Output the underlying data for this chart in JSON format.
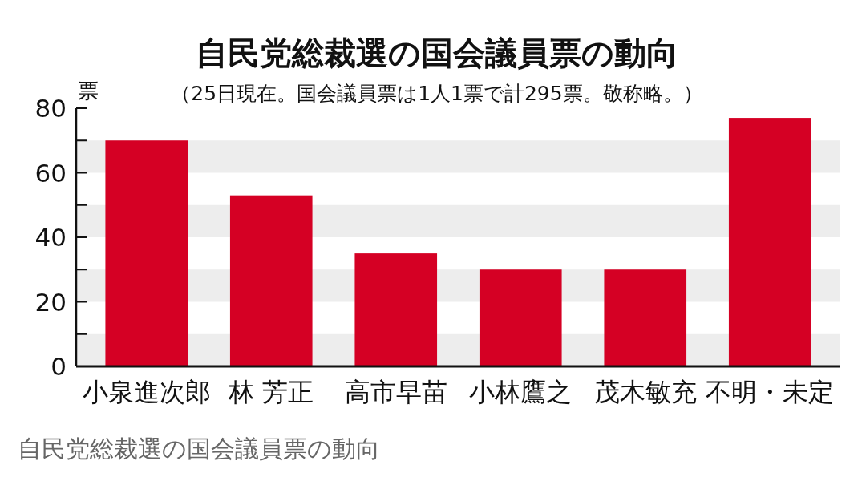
{
  "chart_data": {
    "type": "bar",
    "title": "自民党総裁選の国会議員票の動向",
    "subtitle": "（25日現在。国会議員票は1人1票で計295票。敬称略。）",
    "ylabel": "票",
    "categories": [
      "小泉進次郎",
      "林 芳正",
      "高市早苗",
      "小林鷹之",
      "茂木敏充",
      "不明・未定"
    ],
    "values": [
      70,
      53,
      35,
      30,
      30,
      77
    ],
    "color": "#d50024",
    "ylim": [
      0,
      80
    ],
    "yticks": [
      0,
      {
        "value": 10,
        "label": null
      },
      20,
      {
        "value": 30,
        "label": null
      },
      40,
      {
        "value": 50,
        "label": null
      },
      60,
      {
        "value": 70,
        "label": null
      },
      80
    ],
    "bands": [
      {
        "axis": "y",
        "from": 0,
        "to": 10,
        "color": "#ededed"
      },
      {
        "axis": "y",
        "from": 20,
        "to": 30,
        "color": "#ededed"
      },
      {
        "axis": "y",
        "from": 40,
        "to": 50,
        "color": "#ededed"
      },
      {
        "axis": "y",
        "from": 60,
        "to": 70,
        "color": "#ededed"
      }
    ],
    "annotations": [
      "自民党総裁選の国会議員票の動向"
    ]
  }
}
